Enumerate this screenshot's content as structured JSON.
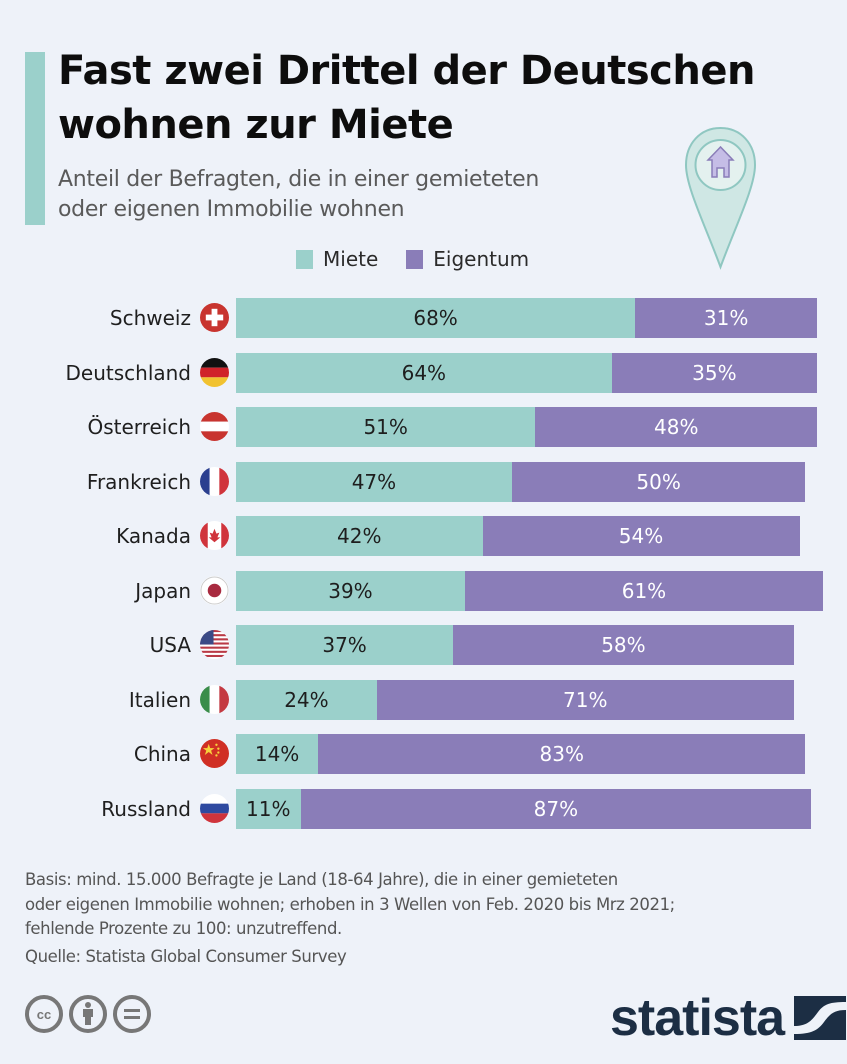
{
  "header": {
    "title_line1": "Fast zwei Drittel der Deutschen",
    "title_line2": "wohnen zur Miete",
    "subtitle_line1": "Anteil der Befragten, die in einer gemieteten",
    "subtitle_line2": "oder eigenen Immobilie wohnen",
    "icon": "location-pin-house-icon"
  },
  "colors": {
    "accent": "#9bd0cb",
    "miete": "#9bd0cb",
    "eigentum": "#8a7db8",
    "background": "#eef2f9",
    "logo": "#1c2e44"
  },
  "chart_data": {
    "type": "bar",
    "stacked": true,
    "orientation": "horizontal",
    "title": "Fast zwei Drittel der Deutschen wohnen zur Miete",
    "subtitle": "Anteil der Befragten, die in einer gemieteten oder eigenen Immobilie wohnen",
    "xlabel": "",
    "ylabel": "",
    "xlim": [
      0,
      100
    ],
    "grid": false,
    "legend_position": "top-center",
    "categories": [
      "Schweiz",
      "Deutschland",
      "Österreich",
      "Frankreich",
      "Kanada",
      "Japan",
      "USA",
      "Italien",
      "China",
      "Russland"
    ],
    "flags": [
      "flag-switzerland-icon",
      "flag-germany-icon",
      "flag-austria-icon",
      "flag-france-icon",
      "flag-canada-icon",
      "flag-japan-icon",
      "flag-usa-icon",
      "flag-italy-icon",
      "flag-china-icon",
      "flag-russia-icon"
    ],
    "series": [
      {
        "name": "Miete",
        "values": [
          68,
          64,
          51,
          47,
          42,
          39,
          37,
          24,
          14,
          11
        ]
      },
      {
        "name": "Eigentum",
        "values": [
          31,
          35,
          48,
          50,
          54,
          61,
          58,
          71,
          83,
          87
        ]
      }
    ],
    "value_suffix": "%"
  },
  "footer": {
    "note_line1": "Basis: mind. 15.000 Befragte je Land (18-64 Jahre), die in einer gemieteten",
    "note_line2": "oder eigenen Immobilie wohnen; erhoben in 3 Wellen von Feb. 2020 bis Mrz 2021;",
    "note_line3": "fehlende Prozente zu 100: unzutreffend.",
    "source": "Quelle: Statista Global Consumer Survey",
    "license_icons": [
      "cc-icon",
      "attribution-icon",
      "no-derivatives-icon"
    ],
    "cc_text": "cc",
    "logo_text": "statista"
  }
}
